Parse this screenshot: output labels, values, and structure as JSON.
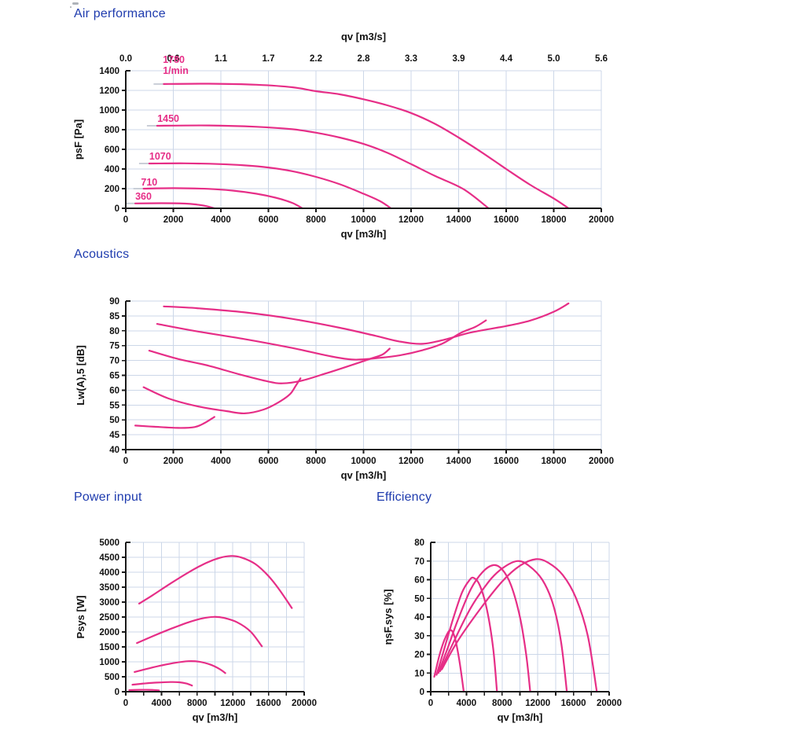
{
  "page": {
    "headings": {
      "air": "Air performance",
      "acoustics": "Acoustics",
      "power": "Power input",
      "efficiency": "Efficiency"
    }
  },
  "colors": {
    "curve": "#e62e87",
    "heading": "#1e3bae",
    "grid": "#ccd7e8",
    "axis": "#1a1a1a",
    "tick_text": "#111111",
    "leadin": "#c9ced7"
  },
  "chart_data": [
    {
      "id": "air-performance",
      "type": "line",
      "title": "Air performance",
      "xlabel": "qv [m3/h]",
      "x2label": "qv [m3/s]",
      "ylabel": "psF [Pa]",
      "xlim": [
        0,
        20000
      ],
      "ylim": [
        0,
        1400
      ],
      "grid": true,
      "x_ticks": [
        0,
        2000,
        4000,
        6000,
        8000,
        10000,
        12000,
        14000,
        16000,
        18000,
        20000
      ],
      "x_tick_labels": [
        "0",
        "2000",
        "4000",
        "6000",
        "8000",
        "10000",
        "12000",
        "14000",
        "16000",
        "18000",
        "20000"
      ],
      "x2_tick_labels": [
        "0.0",
        "0.6",
        "1.1",
        "1.7",
        "2.2",
        "2.8",
        "3.3",
        "3.9",
        "4.4",
        "5.0",
        "5.6"
      ],
      "y_ticks": [
        0,
        200,
        400,
        600,
        800,
        1000,
        1200,
        1400
      ],
      "stall_leadin": true,
      "rpm_unit": "1/min",
      "rpm_labels": [
        {
          "text": "1780",
          "x": 1560,
          "y": 1480
        },
        {
          "text": "1/min",
          "x": 1560,
          "y": 1368
        },
        {
          "text": "1450",
          "x": 1330,
          "y": 880
        },
        {
          "text": "1070",
          "x": 990,
          "y": 496
        },
        {
          "text": "710",
          "x": 640,
          "y": 232
        },
        {
          "text": "360",
          "x": 400,
          "y": 88
        }
      ],
      "series": [
        {
          "name": "360",
          "points": [
            [
              400,
              50
            ],
            [
              1500,
              52
            ],
            [
              2500,
              48
            ],
            [
              3000,
              38
            ],
            [
              3400,
              22
            ],
            [
              3730,
              0
            ]
          ]
        },
        {
          "name": "710",
          "points": [
            [
              750,
              200
            ],
            [
              2000,
              205
            ],
            [
              3500,
              198
            ],
            [
              4500,
              180
            ],
            [
              5500,
              148
            ],
            [
              6300,
              108
            ],
            [
              7000,
              55
            ],
            [
              7430,
              0
            ]
          ]
        },
        {
          "name": "1070",
          "points": [
            [
              990,
              456
            ],
            [
              2500,
              458
            ],
            [
              4000,
              450
            ],
            [
              5000,
              437
            ],
            [
              6000,
              415
            ],
            [
              7000,
              378
            ],
            [
              8000,
              320
            ],
            [
              9000,
              245
            ],
            [
              10000,
              148
            ],
            [
              10700,
              72
            ],
            [
              11150,
              0
            ]
          ]
        },
        {
          "name": "1450",
          "points": [
            [
              1320,
              840
            ],
            [
              3500,
              843
            ],
            [
              5500,
              830
            ],
            [
              7000,
              805
            ],
            [
              8000,
              770
            ],
            [
              9000,
              720
            ],
            [
              10000,
              655
            ],
            [
              11000,
              565
            ],
            [
              12000,
              450
            ],
            [
              13000,
              330
            ],
            [
              14200,
              195
            ],
            [
              15260,
              0
            ]
          ]
        },
        {
          "name": "1780",
          "points": [
            [
              1600,
              1265
            ],
            [
              3500,
              1268
            ],
            [
              5500,
              1258
            ],
            [
              7000,
              1232
            ],
            [
              8000,
              1192
            ],
            [
              9000,
              1160
            ],
            [
              10000,
              1110
            ],
            [
              11000,
              1048
            ],
            [
              12000,
              970
            ],
            [
              13000,
              860
            ],
            [
              14000,
              720
            ],
            [
              15000,
              565
            ],
            [
              16000,
              400
            ],
            [
              17000,
              240
            ],
            [
              18000,
              100
            ],
            [
              18620,
              0
            ]
          ]
        }
      ]
    },
    {
      "id": "acoustics",
      "type": "line",
      "title": "Acoustics",
      "xlabel": "qv [m3/h]",
      "ylabel": "Lw(A),5 [dB]",
      "xlim": [
        0,
        20000
      ],
      "ylim": [
        40,
        90
      ],
      "grid": true,
      "x_ticks": [
        0,
        2000,
        4000,
        6000,
        8000,
        10000,
        12000,
        14000,
        16000,
        18000,
        20000
      ],
      "x_tick_labels": [
        "0",
        "2000",
        "4000",
        "6000",
        "8000",
        "10000",
        "12000",
        "14000",
        "16000",
        "18000",
        "20000"
      ],
      "y_ticks": [
        40,
        45,
        50,
        55,
        60,
        65,
        70,
        75,
        80,
        85,
        90
      ],
      "series": [
        {
          "name": "360",
          "points": [
            [
              400,
              48.1
            ],
            [
              1200,
              47.7
            ],
            [
              2200,
              47.3
            ],
            [
              2900,
              47.6
            ],
            [
              3300,
              48.9
            ],
            [
              3730,
              51
            ]
          ]
        },
        {
          "name": "710",
          "points": [
            [
              750,
              61
            ],
            [
              1800,
              57.2
            ],
            [
              3000,
              54.6
            ],
            [
              4200,
              53
            ],
            [
              5000,
              52.2
            ],
            [
              5800,
              53.5
            ],
            [
              6400,
              55.8
            ],
            [
              6900,
              58.6
            ],
            [
              7150,
              61.5
            ],
            [
              7350,
              64
            ]
          ]
        },
        {
          "name": "1070",
          "points": [
            [
              990,
              73.3
            ],
            [
              2200,
              70.5
            ],
            [
              3500,
              68.2
            ],
            [
              4800,
              65.3
            ],
            [
              6000,
              62.9
            ],
            [
              6600,
              62.3
            ],
            [
              7400,
              63.2
            ],
            [
              8400,
              65.6
            ],
            [
              9400,
              68.2
            ],
            [
              10300,
              70.6
            ],
            [
              10800,
              72
            ],
            [
              11100,
              74
            ]
          ]
        },
        {
          "name": "1450",
          "points": [
            [
              1320,
              82.3
            ],
            [
              3000,
              79.8
            ],
            [
              5000,
              77.2
            ],
            [
              7000,
              74.2
            ],
            [
              8500,
              71.6
            ],
            [
              9600,
              70.3
            ],
            [
              10700,
              70.9
            ],
            [
              11500,
              71.7
            ],
            [
              12500,
              73.5
            ],
            [
              13300,
              75.6
            ],
            [
              14100,
              79.3
            ],
            [
              14700,
              81.3
            ],
            [
              15150,
              83.5
            ]
          ]
        },
        {
          "name": "1780",
          "points": [
            [
              1600,
              88.2
            ],
            [
              3000,
              87.6
            ],
            [
              5000,
              86.2
            ],
            [
              7000,
              84
            ],
            [
              9000,
              81
            ],
            [
              10500,
              78.3
            ],
            [
              11500,
              76.4
            ],
            [
              12500,
              75.6
            ],
            [
              13500,
              77.2
            ],
            [
              14500,
              79.4
            ],
            [
              16000,
              81.6
            ],
            [
              17000,
              83.4
            ],
            [
              18000,
              86.4
            ],
            [
              18620,
              89.2
            ]
          ]
        }
      ]
    },
    {
      "id": "power-input",
      "type": "line",
      "title": "Power input",
      "xlabel": "qv [m3/h]",
      "ylabel": "Psys [W]",
      "xlim": [
        0,
        20000
      ],
      "ylim": [
        0,
        5000
      ],
      "grid": true,
      "x_ticks": [
        0,
        2000,
        4000,
        6000,
        8000,
        10000,
        12000,
        14000,
        16000,
        18000,
        20000
      ],
      "x_tick_labels": [
        "0",
        "",
        "4000",
        "",
        "8000",
        "",
        "12000",
        "",
        "16000",
        "",
        "20000"
      ],
      "y_ticks": [
        0,
        500,
        1000,
        1500,
        2000,
        2500,
        3000,
        3500,
        4000,
        4500,
        5000
      ],
      "series": [
        {
          "name": "360",
          "points": [
            [
              400,
              52
            ],
            [
              1500,
              62
            ],
            [
              2500,
              64
            ],
            [
              3100,
              57
            ],
            [
              3730,
              42
            ]
          ]
        },
        {
          "name": "710",
          "points": [
            [
              750,
              235
            ],
            [
              2000,
              275
            ],
            [
              3500,
              305
            ],
            [
              5000,
              325
            ],
            [
              6000,
              315
            ],
            [
              6800,
              275
            ],
            [
              7430,
              205
            ]
          ]
        },
        {
          "name": "1070",
          "points": [
            [
              990,
              660
            ],
            [
              2500,
              775
            ],
            [
              4000,
              880
            ],
            [
              5500,
              965
            ],
            [
              7000,
              1020
            ],
            [
              8200,
              1005
            ],
            [
              9500,
              905
            ],
            [
              10500,
              760
            ],
            [
              11150,
              625
            ]
          ]
        },
        {
          "name": "1450",
          "points": [
            [
              1250,
              1630
            ],
            [
              3000,
              1855
            ],
            [
              5000,
              2100
            ],
            [
              7000,
              2320
            ],
            [
              8500,
              2450
            ],
            [
              9900,
              2505
            ],
            [
              11000,
              2470
            ],
            [
              12500,
              2320
            ],
            [
              14000,
              2010
            ],
            [
              15260,
              1520
            ]
          ]
        },
        {
          "name": "1780",
          "points": [
            [
              1500,
              2950
            ],
            [
              3000,
              3230
            ],
            [
              5000,
              3620
            ],
            [
              7000,
              3990
            ],
            [
              9000,
              4310
            ],
            [
              10500,
              4480
            ],
            [
              11800,
              4545
            ],
            [
              13000,
              4490
            ],
            [
              14500,
              4280
            ],
            [
              16000,
              3870
            ],
            [
              17300,
              3380
            ],
            [
              18620,
              2800
            ]
          ]
        }
      ]
    },
    {
      "id": "efficiency",
      "type": "line",
      "title": "Efficiency",
      "xlabel": "qv [m3/h]",
      "ylabel": "ηsF,sys [%]",
      "xlim": [
        0,
        20000
      ],
      "ylim": [
        0,
        80
      ],
      "grid": true,
      "x_ticks": [
        0,
        2000,
        4000,
        6000,
        8000,
        10000,
        12000,
        14000,
        16000,
        18000,
        20000
      ],
      "x_tick_labels": [
        "0",
        "",
        "4000",
        "",
        "8000",
        "",
        "12000",
        "",
        "16000",
        "",
        "20000"
      ],
      "y_ticks": [
        0,
        10,
        20,
        30,
        40,
        50,
        60,
        70,
        80
      ],
      "series": [
        {
          "name": "360",
          "points": [
            [
              400,
              8
            ],
            [
              1000,
              20
            ],
            [
              1600,
              28.5
            ],
            [
              2200,
              33
            ],
            [
              2700,
              29
            ],
            [
              3200,
              17
            ],
            [
              3700,
              0
            ]
          ]
        },
        {
          "name": "710",
          "points": [
            [
              650,
              9
            ],
            [
              1400,
              21
            ],
            [
              2500,
              39
            ],
            [
              3500,
              53
            ],
            [
              4300,
              59.5
            ],
            [
              4800,
              61
            ],
            [
              5500,
              57
            ],
            [
              6300,
              44
            ],
            [
              7000,
              23
            ],
            [
              7430,
              0
            ]
          ]
        },
        {
          "name": "1070",
          "points": [
            [
              850,
              10
            ],
            [
              1800,
              22
            ],
            [
              3000,
              38
            ],
            [
              4500,
              55
            ],
            [
              5800,
              64
            ],
            [
              7000,
              67.8
            ],
            [
              8000,
              65.5
            ],
            [
              9000,
              57
            ],
            [
              10000,
              40
            ],
            [
              10700,
              20
            ],
            [
              11150,
              0
            ]
          ]
        },
        {
          "name": "1450",
          "points": [
            [
              1050,
              11
            ],
            [
              2500,
              26
            ],
            [
              4500,
              45
            ],
            [
              6500,
              59
            ],
            [
              8000,
              66
            ],
            [
              9700,
              70
            ],
            [
              11000,
              67.5
            ],
            [
              12500,
              60
            ],
            [
              13700,
              47
            ],
            [
              14600,
              27
            ],
            [
              15260,
              0
            ]
          ]
        },
        {
          "name": "1780",
          "points": [
            [
              1250,
              12
            ],
            [
              3000,
              27
            ],
            [
              5500,
              44
            ],
            [
              8000,
              59
            ],
            [
              10000,
              67.5
            ],
            [
              11800,
              71
            ],
            [
              13200,
              69
            ],
            [
              14800,
              62.5
            ],
            [
              16300,
              50
            ],
            [
              17600,
              30
            ],
            [
              18620,
              0
            ]
          ]
        }
      ]
    }
  ]
}
